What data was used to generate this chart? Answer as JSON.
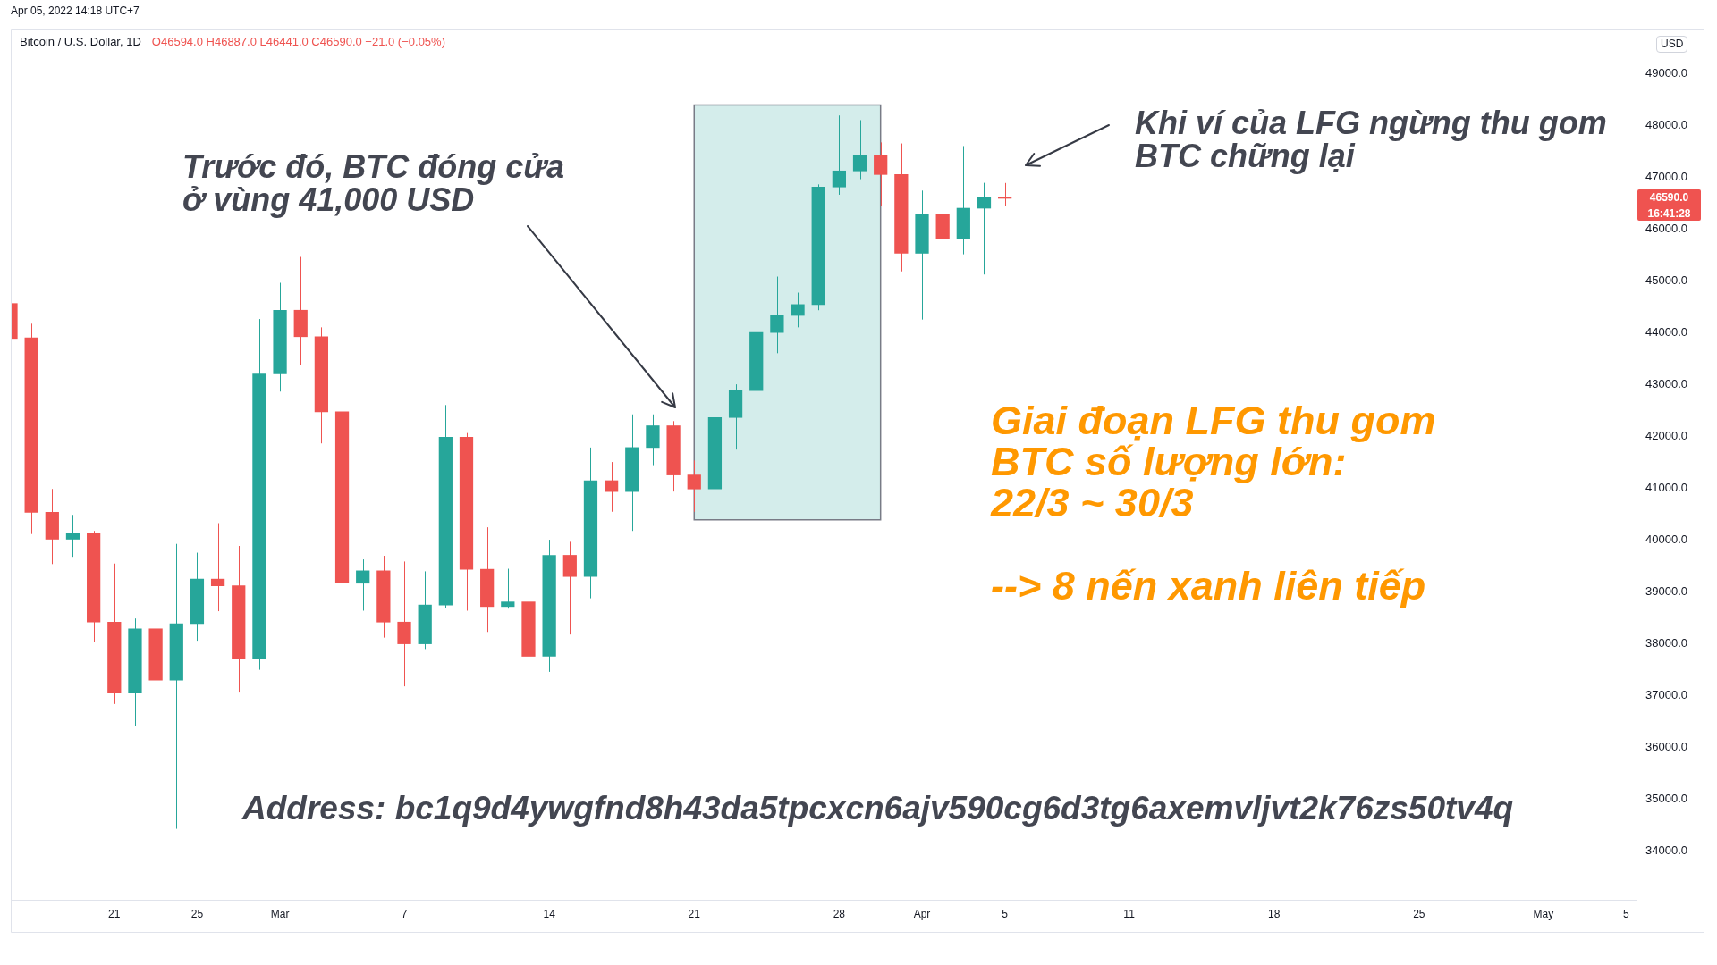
{
  "chart_data": {
    "type": "candlestick",
    "title": "Bitcoin / U.S. Dollar, 1D",
    "subtitle": "O46594.0 H46887.0 L46441.0 C46590.0 −21.0 (−0.05%)",
    "ylabel": "USD",
    "x": [
      "2022-02-16",
      "2022-02-17",
      "2022-02-18",
      "2022-02-19",
      "2022-02-20",
      "2022-02-21",
      "2022-02-22",
      "2022-02-23",
      "2022-02-24",
      "2022-02-25",
      "2022-02-26",
      "2022-02-27",
      "2022-02-28",
      "2022-03-01",
      "2022-03-02",
      "2022-03-03",
      "2022-03-04",
      "2022-03-05",
      "2022-03-06",
      "2022-03-07",
      "2022-03-08",
      "2022-03-09",
      "2022-03-10",
      "2022-03-11",
      "2022-03-12",
      "2022-03-13",
      "2022-03-14",
      "2022-03-15",
      "2022-03-16",
      "2022-03-17",
      "2022-03-18",
      "2022-03-19",
      "2022-03-20",
      "2022-03-21",
      "2022-03-22",
      "2022-03-23",
      "2022-03-24",
      "2022-03-25",
      "2022-03-26",
      "2022-03-27",
      "2022-03-28",
      "2022-03-29",
      "2022-03-30",
      "2022-03-31",
      "2022-04-01",
      "2022-04-02",
      "2022-04-03",
      "2022-04-04",
      "2022-04-05"
    ],
    "ohlc": [
      [
        44560,
        44560,
        43885,
        43885
      ],
      [
        43900,
        44170,
        40110,
        40530
      ],
      [
        40530,
        40980,
        39530,
        40010
      ],
      [
        40010,
        40480,
        39670,
        40120
      ],
      [
        40120,
        40170,
        38030,
        38410
      ],
      [
        38410,
        39540,
        36830,
        37040
      ],
      [
        37040,
        38480,
        36400,
        38280
      ],
      [
        38280,
        39300,
        37110,
        37290
      ],
      [
        37290,
        39920,
        34420,
        38380
      ],
      [
        38380,
        39750,
        38050,
        39240
      ],
      [
        39240,
        40320,
        38620,
        39110
      ],
      [
        39110,
        39880,
        37050,
        37710
      ],
      [
        37710,
        44260,
        37490,
        43200
      ],
      [
        43200,
        44960,
        42860,
        44430
      ],
      [
        44430,
        45460,
        43380,
        43920
      ],
      [
        43920,
        44100,
        41860,
        42470
      ],
      [
        42470,
        42550,
        38610,
        39160
      ],
      [
        39160,
        39620,
        38630,
        39400
      ],
      [
        39400,
        39690,
        38110,
        38410
      ],
      [
        38410,
        39580,
        37170,
        37990
      ],
      [
        37990,
        39390,
        37890,
        38740
      ],
      [
        38740,
        42600,
        38680,
        41980
      ],
      [
        41980,
        42060,
        38630,
        39430
      ],
      [
        39430,
        40240,
        38220,
        38710
      ],
      [
        38710,
        39440,
        38670,
        38800
      ],
      [
        38800,
        39330,
        37560,
        37750
      ],
      [
        37750,
        40000,
        37450,
        39700
      ],
      [
        39700,
        39960,
        38170,
        39290
      ],
      [
        39290,
        41780,
        38870,
        41140
      ],
      [
        41140,
        41500,
        40540,
        40930
      ],
      [
        40930,
        42420,
        40170,
        41780
      ],
      [
        41780,
        42420,
        41440,
        42200
      ],
      [
        42200,
        42290,
        40930,
        41250
      ],
      [
        41250,
        41530,
        40540,
        40980
      ],
      [
        40980,
        43320,
        40880,
        42360
      ],
      [
        42360,
        43000,
        41740,
        42880
      ],
      [
        42880,
        44230,
        42580,
        44000
      ],
      [
        44000,
        45080,
        43600,
        44330
      ],
      [
        44330,
        44770,
        44100,
        44540
      ],
      [
        44540,
        46860,
        44430,
        46810
      ],
      [
        46810,
        48190,
        46660,
        47120
      ],
      [
        47120,
        48100,
        46960,
        47420
      ],
      [
        47420,
        47670,
        46450,
        47050
      ],
      [
        47050,
        47650,
        45180,
        45530
      ],
      [
        45530,
        46740,
        44250,
        46290
      ],
      [
        46290,
        47240,
        45640,
        45810
      ],
      [
        45810,
        47600,
        45510,
        46400
      ],
      [
        46400,
        46890,
        45120,
        46610
      ],
      [
        46594,
        46887,
        46441,
        46590
      ]
    ],
    "colors": [
      "#ef5350",
      "#ef5350",
      "#ef5350",
      "#26a69a",
      "#ef5350",
      "#ef5350",
      "#26a69a",
      "#ef5350",
      "#26a69a",
      "#26a69a",
      "#ef5350",
      "#ef5350",
      "#26a69a",
      "#26a69a",
      "#ef5350",
      "#ef5350",
      "#ef5350",
      "#26a69a",
      "#ef5350",
      "#ef5350",
      "#26a69a",
      "#26a69a",
      "#ef5350",
      "#ef5350",
      "#26a69a",
      "#ef5350",
      "#26a69a",
      "#ef5350",
      "#26a69a",
      "#ef5350",
      "#26a69a",
      "#26a69a",
      "#ef5350",
      "#ef5350",
      "#26a69a",
      "#26a69a",
      "#26a69a",
      "#26a69a",
      "#26a69a",
      "#26a69a",
      "#26a69a",
      "#26a69a",
      "#ef5350",
      "#ef5350",
      "#26a69a",
      "#ef5350",
      "#26a69a",
      "#26a69a",
      "#ef5350"
    ],
    "xlim": [
      "2022-02-16",
      "2022-05-05T12:00"
    ],
    "xticks": [
      {
        "value": "2022-02-21",
        "label": "21"
      },
      {
        "value": "2022-02-25",
        "label": "25"
      },
      {
        "value": "2022-03-01",
        "label": "Mar"
      },
      {
        "value": "2022-03-07",
        "label": "7"
      },
      {
        "value": "2022-03-14",
        "label": "14"
      },
      {
        "value": "2022-03-21",
        "label": "21"
      },
      {
        "value": "2022-03-28",
        "label": "28"
      },
      {
        "value": "2022-04-01",
        "label": "Apr"
      },
      {
        "value": "2022-04-05",
        "label": "5"
      },
      {
        "value": "2022-04-11",
        "label": "11"
      },
      {
        "value": "2022-04-18",
        "label": "18"
      },
      {
        "value": "2022-04-25",
        "label": "25"
      },
      {
        "value": "2022-05-01",
        "label": "May"
      },
      {
        "value": "2022-05-05",
        "label": "5"
      }
    ],
    "ylim": [
      33050,
      49850
    ],
    "yticks": [
      {
        "value": 34000,
        "label": "34000.0"
      },
      {
        "value": 35000,
        "label": "35000.0"
      },
      {
        "value": 36000,
        "label": "36000.0"
      },
      {
        "value": 37000,
        "label": "37000.0"
      },
      {
        "value": 38000,
        "label": "38000.0"
      },
      {
        "value": 39000,
        "label": "39000.0"
      },
      {
        "value": 40000,
        "label": "40000.0"
      },
      {
        "value": 41000,
        "label": "41000.0"
      },
      {
        "value": 42000,
        "label": "42000.0"
      },
      {
        "value": 43000,
        "label": "43000.0"
      },
      {
        "value": 44000,
        "label": "44000.0"
      },
      {
        "value": 45000,
        "label": "45000.0"
      },
      {
        "value": 46000,
        "label": "46000.0"
      },
      {
        "value": 47000,
        "label": "47000.0"
      },
      {
        "value": 48000,
        "label": "48000.0"
      },
      {
        "value": 49000,
        "label": "49000.0"
      }
    ],
    "bands": [
      {
        "axis": "x",
        "from": "2022-03-21",
        "to": "2022-03-30",
        "color": "#d4edeb"
      }
    ],
    "annotations": [
      "Apr 05, 2022 14:18 UTC+7",
      "Trước đó, BTC đóng cửa\nở vùng 41,000 USD",
      "Khi ví của LFG ngừng thu gom\nBTC chững lại",
      "Giai đoạn LFG thu gom\nBTC số lượng lớn:\n22/3 ~ 30/3",
      "--> 8 nến xanh liên tiếp",
      "Address: bc1q9d4ywgfnd8h43da5tpcxcn6ajv590cg6d3tg6axemvljvt2k76zs50tv4q",
      "46590.0",
      "16:41:28"
    ]
  }
}
